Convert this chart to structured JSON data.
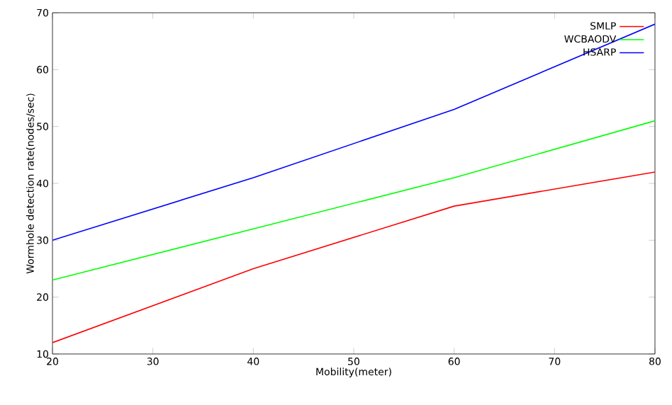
{
  "chart_data": {
    "type": "line",
    "xlabel": "Mobility(meter)",
    "ylabel": "Wormhole detection rate(nodes/sec)",
    "x": [
      20,
      40,
      60,
      80
    ],
    "series": [
      {
        "name": "SMLP",
        "color": "#ff0000",
        "values": [
          12,
          25,
          36,
          42
        ]
      },
      {
        "name": "WCBAODV",
        "color": "#00ff00",
        "values": [
          23,
          32,
          41,
          51
        ]
      },
      {
        "name": "HSARP",
        "color": "#0000ff",
        "values": [
          30,
          41,
          53,
          68
        ]
      }
    ],
    "xlim": [
      20,
      80
    ],
    "ylim": [
      10,
      70
    ],
    "xticks": [
      20,
      30,
      40,
      50,
      60,
      70,
      80
    ],
    "yticks": [
      10,
      20,
      30,
      40,
      50,
      60,
      70
    ],
    "legend": "top right",
    "grid": false,
    "marker": "none",
    "line_style": "solid"
  }
}
